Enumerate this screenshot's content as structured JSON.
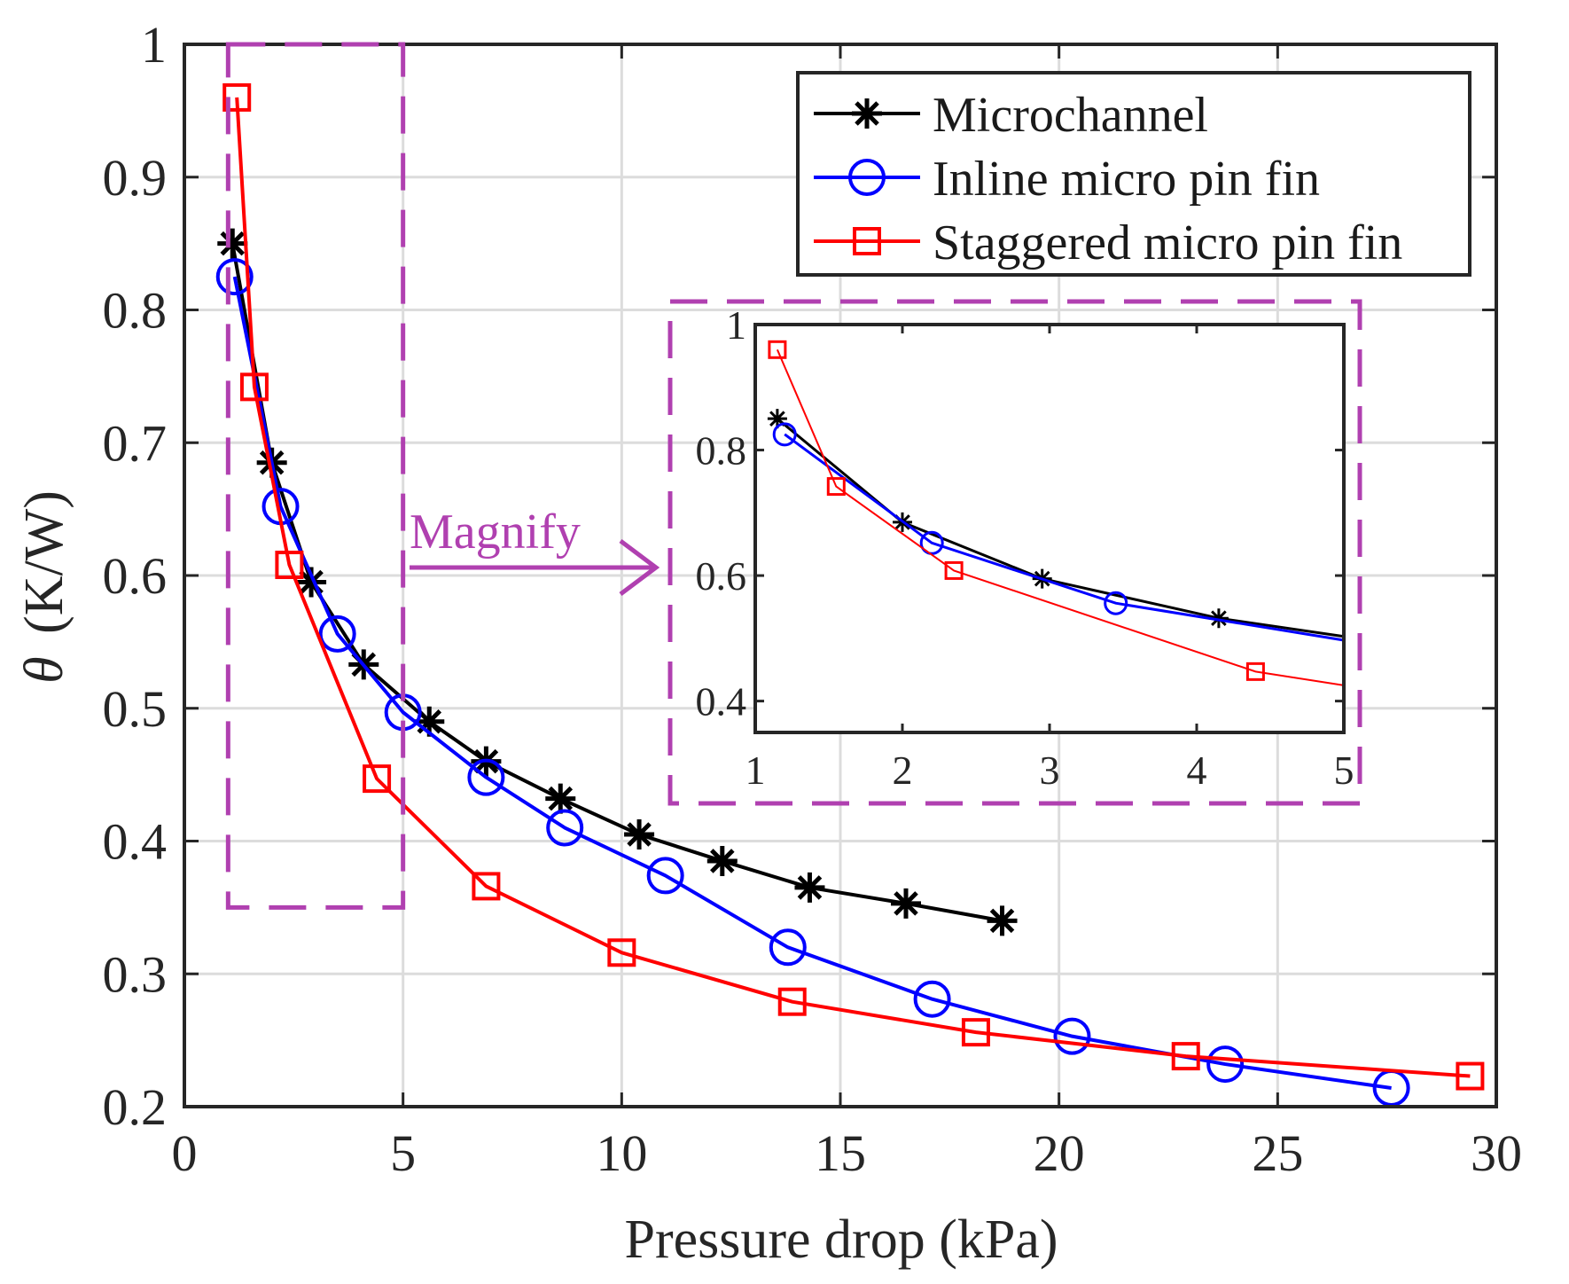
{
  "chart_data": [
    {
      "type": "line",
      "title": "",
      "xlabel": "Pressure drop (kPa)",
      "ylabel_symbol": "θ",
      "ylabel_unit": "(K/W)",
      "xlim": [
        0,
        30
      ],
      "ylim": [
        0.2,
        1.0
      ],
      "x_ticks": [
        0,
        5,
        10,
        15,
        20,
        25,
        30
      ],
      "y_ticks": [
        0.2,
        0.3,
        0.4,
        0.5,
        0.6,
        0.7,
        0.8,
        0.9,
        1.0
      ],
      "x_tick_labels": [
        "0",
        "5",
        "10",
        "15",
        "20",
        "25",
        "30"
      ],
      "y_tick_labels": [
        "0.2",
        "0.3",
        "0.4",
        "0.5",
        "0.6",
        "0.7",
        "0.8",
        "0.9",
        "1"
      ],
      "grid": true,
      "legend_position": "top-right",
      "series": [
        {
          "name": "Microchannel",
          "color": "#000000",
          "marker": "asterisk",
          "x": [
            1.1,
            2.0,
            2.9,
            4.1,
            5.6,
            6.9,
            8.6,
            10.4,
            12.3,
            14.3,
            16.5,
            18.7
          ],
          "y": [
            0.85,
            0.685,
            0.595,
            0.533,
            0.49,
            0.46,
            0.432,
            0.405,
            0.385,
            0.365,
            0.353,
            0.34
          ]
        },
        {
          "name": "Inline micro pin fin",
          "color": "#0000ff",
          "marker": "circle",
          "x": [
            1.15,
            2.2,
            3.5,
            5.0,
            6.9,
            8.7,
            11.0,
            13.8,
            17.1,
            20.3,
            23.8,
            27.6
          ],
          "y": [
            0.825,
            0.652,
            0.556,
            0.497,
            0.448,
            0.41,
            0.374,
            0.32,
            0.281,
            0.253,
            0.232,
            0.214
          ]
        },
        {
          "name": "Staggered micro pin fin",
          "color": "#ff0000",
          "marker": "square",
          "x": [
            1.2,
            1.6,
            2.4,
            4.4,
            6.9,
            10.0,
            13.9,
            18.1,
            22.9,
            29.4
          ],
          "y": [
            0.96,
            0.742,
            0.608,
            0.447,
            0.366,
            0.316,
            0.279,
            0.256,
            0.238,
            0.223
          ]
        }
      ],
      "annotation": "Magnify",
      "magnify_region": {
        "x": [
          1.0,
          5.0
        ],
        "y": [
          0.35,
          1.0
        ]
      },
      "accent_color": "#b040b0"
    },
    {
      "type": "line",
      "role": "inset",
      "xlim": [
        1,
        5
      ],
      "ylim": [
        0.35,
        1.0
      ],
      "x_ticks": [
        1,
        2,
        3,
        4,
        5
      ],
      "y_ticks": [
        0.4,
        0.6,
        0.8,
        1.0
      ],
      "x_tick_labels": [
        "1",
        "2",
        "3",
        "4",
        "5"
      ],
      "y_tick_labels": [
        "0.4",
        "0.6",
        "0.8",
        "1"
      ],
      "grid": false,
      "series": [
        {
          "color": "#000000",
          "marker": "asterisk",
          "x": [
            1.15,
            2.0,
            2.95,
            4.15
          ],
          "y": [
            0.85,
            0.685,
            0.595,
            0.532
          ],
          "line_x": [
            1.15,
            2.0,
            2.95,
            4.15,
            5.0
          ],
          "line_y": [
            0.85,
            0.685,
            0.595,
            0.532,
            0.503
          ]
        },
        {
          "color": "#0000ff",
          "marker": "circle",
          "x": [
            1.2,
            2.2,
            3.45
          ],
          "y": [
            0.825,
            0.652,
            0.556
          ],
          "line_x": [
            1.2,
            2.2,
            3.45,
            5.0
          ],
          "line_y": [
            0.825,
            0.652,
            0.556,
            0.497
          ]
        },
        {
          "color": "#ff0000",
          "marker": "square",
          "x": [
            1.15,
            1.55,
            2.35,
            4.4
          ],
          "y": [
            0.96,
            0.742,
            0.608,
            0.447
          ],
          "line_x": [
            1.15,
            1.55,
            2.35,
            4.4,
            5.0
          ],
          "line_y": [
            0.96,
            0.742,
            0.608,
            0.447,
            0.425
          ]
        }
      ]
    }
  ]
}
